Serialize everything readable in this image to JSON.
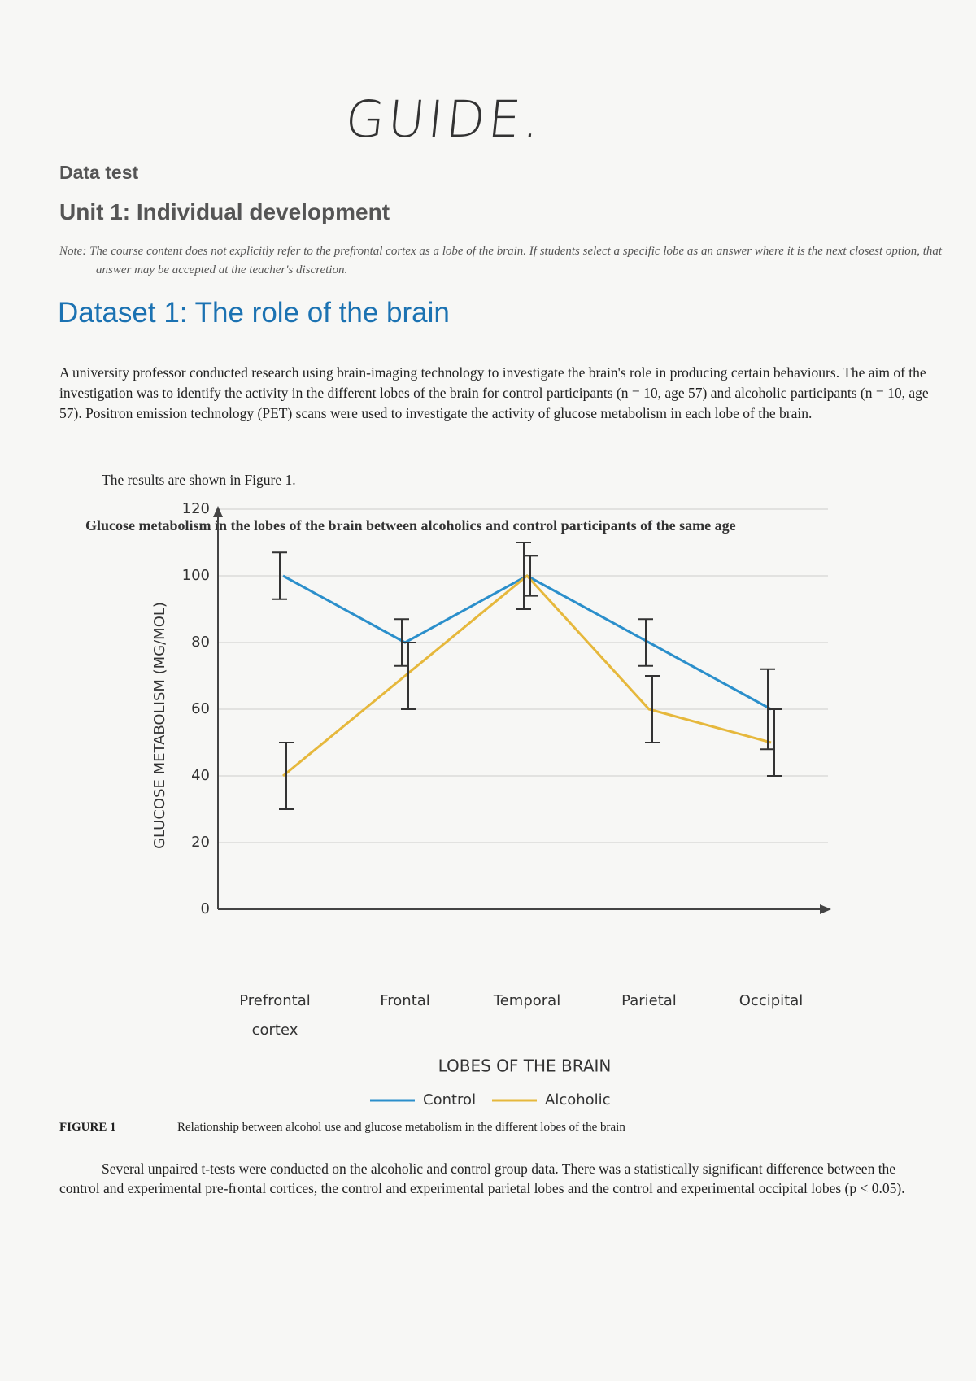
{
  "handwriting": "GUIDE.",
  "header": {
    "label": "Data test",
    "unit": "Unit 1: Individual development"
  },
  "note": "Note: The course content does not explicitly refer to the prefrontal cortex as a lobe of the brain. If students select a specific lobe as an answer where it is the next closest option, that answer may be accepted at the teacher's discretion.",
  "dataset_title": "Dataset 1: The role of the brain",
  "intro": "A university professor conducted research using brain-imaging technology to investigate the brain's role in producing certain behaviours. The aim of the investigation was to identify the activity in the different lobes of the brain for control participants (n = 10, age 57) and alcoholic participants (n = 10, age 57). Positron emission technology (PET) scans were used to investigate the activity of glucose metabolism in each lobe of the brain.",
  "results_line": "The results are shown in Figure 1.",
  "chart_data": {
    "type": "line",
    "title": "Glucose metabolism in the lobes of the brain between alcoholics and control participants of the same age",
    "x_label": "LOBES OF THE BRAIN",
    "y_label": "GLUCOSE METABOLISM (MG/MOL)",
    "categories": [
      "Prefrontal cortex",
      "Frontal",
      "Temporal",
      "Parietal",
      "Occipital"
    ],
    "series": [
      {
        "name": "Control",
        "color": "#2b8fcb",
        "values": [
          100,
          80,
          100,
          80,
          60
        ],
        "errors": [
          7,
          7,
          10,
          7,
          12
        ]
      },
      {
        "name": "Alcoholic",
        "color": "#e6b83c",
        "values": [
          40,
          70,
          100,
          60,
          50
        ],
        "errors": [
          10,
          10,
          6,
          10,
          10
        ]
      }
    ],
    "ylim": [
      0,
      120
    ],
    "yticks": [
      0,
      20,
      40,
      60,
      80,
      100,
      120
    ],
    "grid": true,
    "legend": "bottom"
  },
  "figure": {
    "label": "FIGURE 1",
    "caption": "Relationship between alcohol use and glucose metabolism in the different lobes of the brain"
  },
  "conclusion": "Several unpaired t-tests were conducted on the alcoholic and control group data. There was a statistically significant difference between the control and experimental pre-frontal cortices, the control and experimental parietal lobes and the control and experimental occipital lobes (p < 0.05)."
}
